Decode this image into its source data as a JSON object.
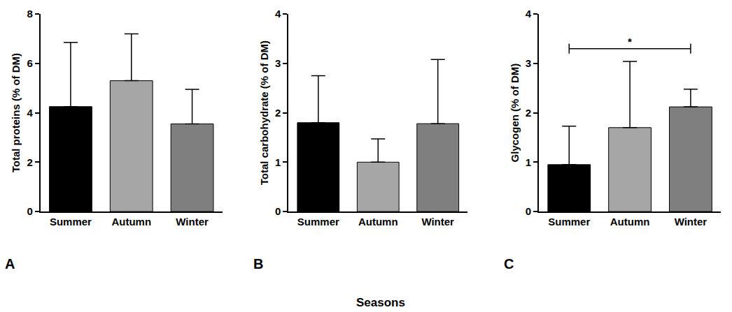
{
  "xlabel": "Seasons",
  "chart_data": [
    {
      "type": "bar",
      "panel": "A",
      "ylabel": "Total proteins (% of DM)",
      "categories": [
        "Summer",
        "Autumn",
        "Winter"
      ],
      "values": [
        4.25,
        5.3,
        3.55
      ],
      "errors": [
        2.6,
        1.9,
        1.4
      ],
      "colors": [
        "#000000",
        "#a6a6a6",
        "#7f7f7f"
      ],
      "ylim": [
        0,
        8
      ],
      "yticks": [
        0,
        2,
        4,
        6,
        8
      ],
      "grid": false
    },
    {
      "type": "bar",
      "panel": "B",
      "ylabel": "Total carbohydrate (% of DM)",
      "categories": [
        "Summer",
        "Autumn",
        "Winter"
      ],
      "values": [
        1.8,
        1.0,
        1.78
      ],
      "errors": [
        0.95,
        0.47,
        1.3
      ],
      "colors": [
        "#000000",
        "#a6a6a6",
        "#7f7f7f"
      ],
      "ylim": [
        0,
        4
      ],
      "yticks": [
        0,
        1,
        2,
        3,
        4
      ],
      "grid": false
    },
    {
      "type": "bar",
      "panel": "C",
      "ylabel": "Glycogen (% of DM)",
      "categories": [
        "Summer",
        "Autumn",
        "Winter"
      ],
      "values": [
        0.95,
        1.7,
        2.12
      ],
      "errors": [
        0.78,
        1.34,
        0.36
      ],
      "colors": [
        "#000000",
        "#a6a6a6",
        "#7f7f7f"
      ],
      "ylim": [
        0,
        4
      ],
      "yticks": [
        0,
        1,
        2,
        3,
        4
      ],
      "grid": false,
      "annotations": [
        {
          "text": "*",
          "from": "Summer",
          "to": "Winter",
          "y": 3.3
        }
      ]
    }
  ]
}
